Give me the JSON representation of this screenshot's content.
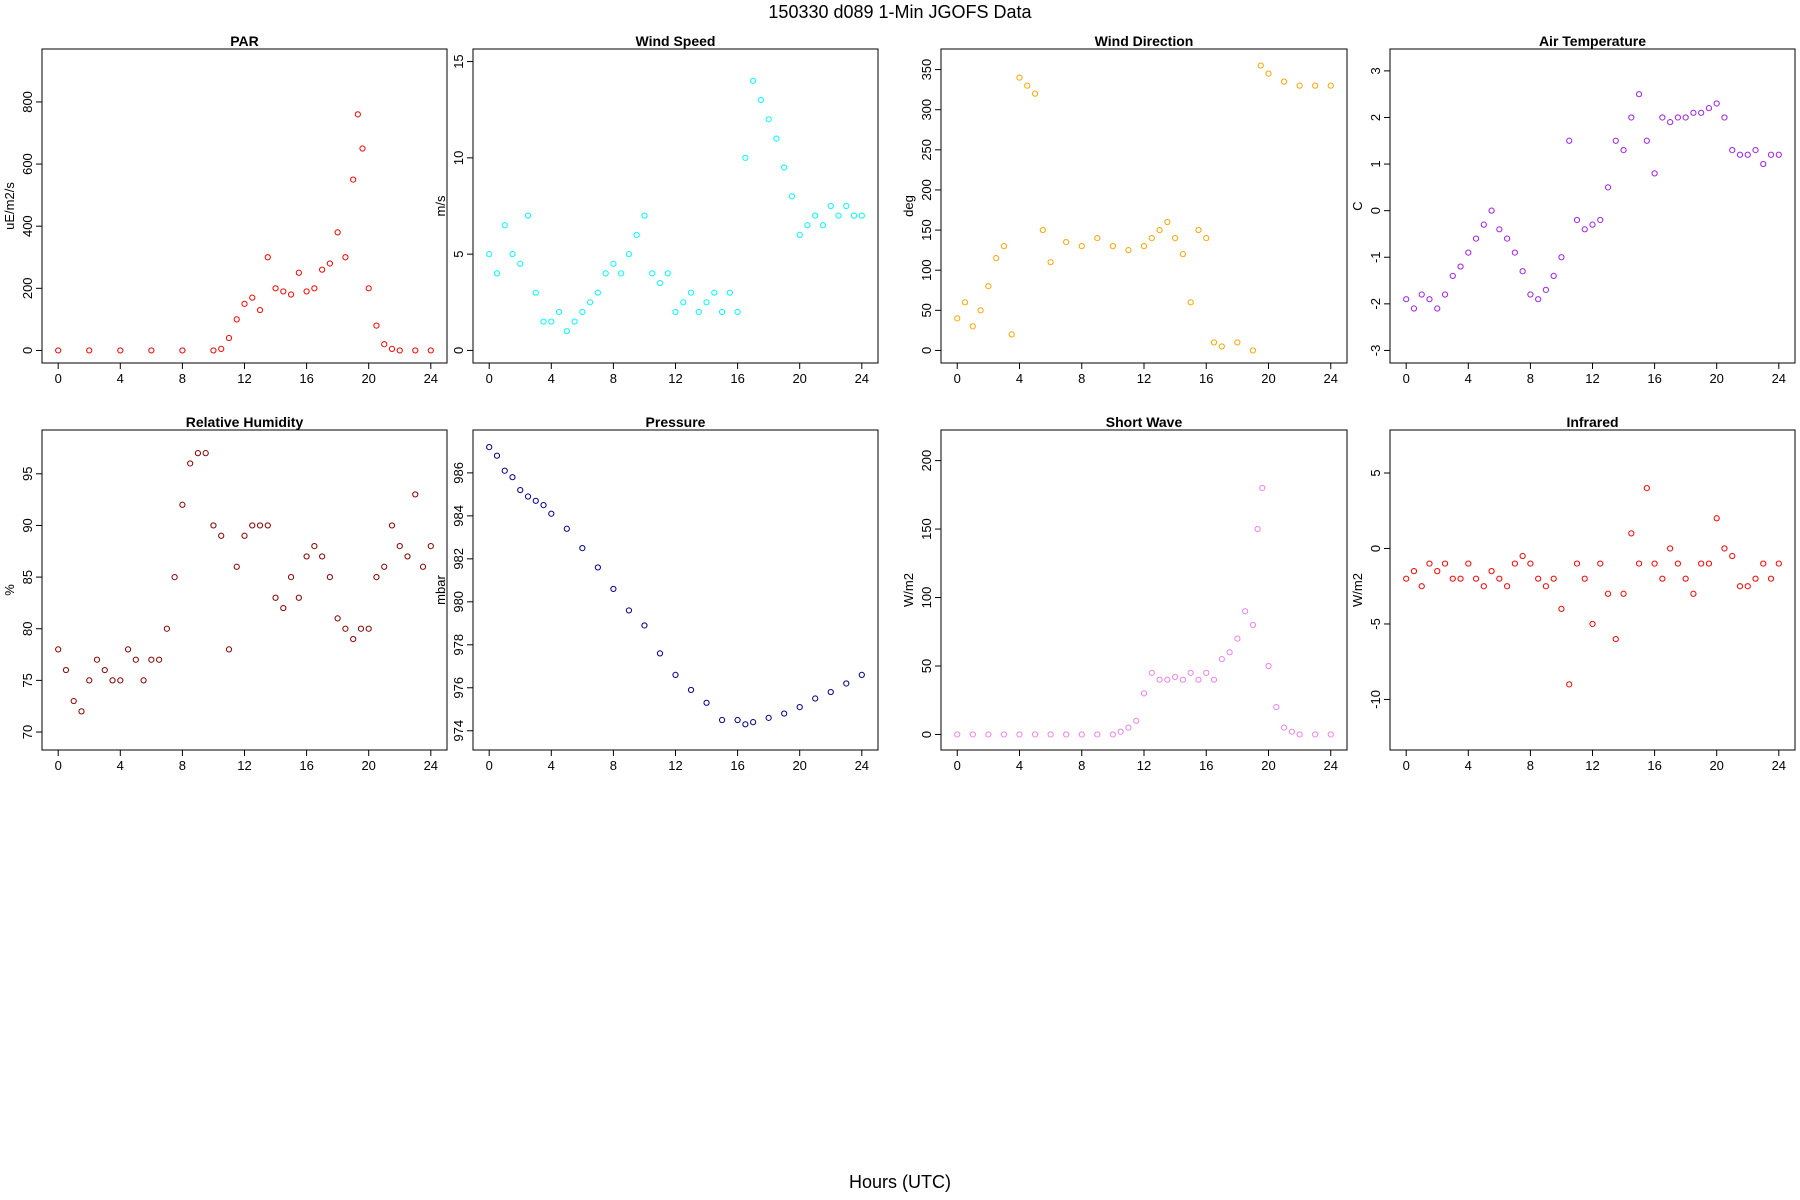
{
  "title": "150330   d089   1-Min  JGOFS Data",
  "xlabel": "Hours (UTC)",
  "chart_data": [
    {
      "type": "scatter",
      "title": "PAR",
      "ylabel": "uE/m2/s",
      "color": "#ff0000",
      "xlim": [
        0,
        24
      ],
      "ylim": [
        0,
        930
      ],
      "xticks": [
        "0",
        "4",
        "8",
        "12",
        "16",
        "20",
        "24"
      ],
      "yticks": [
        "0",
        "200",
        "400",
        "600",
        "800"
      ],
      "x": [
        0,
        2,
        4,
        6,
        8,
        10,
        10.5,
        11,
        11.5,
        12,
        12.5,
        13,
        13.5,
        14,
        14.5,
        15,
        15.5,
        16,
        16.5,
        17,
        17.5,
        18,
        18.5,
        19,
        19.3,
        19.6,
        20,
        20.5,
        21,
        21.5,
        22,
        23,
        24
      ],
      "y": [
        0,
        0,
        0,
        0,
        0,
        0,
        5,
        40,
        100,
        150,
        170,
        130,
        300,
        200,
        190,
        180,
        250,
        190,
        200,
        260,
        280,
        380,
        300,
        550,
        760,
        650,
        200,
        80,
        20,
        5,
        0,
        0,
        0
      ]
    },
    {
      "type": "scatter",
      "title": "Wind Speed",
      "ylabel": "m/s",
      "color": "#00ffff",
      "xlim": [
        0,
        24
      ],
      "ylim": [
        0,
        15
      ],
      "xticks": [
        "0",
        "4",
        "8",
        "12",
        "16",
        "20",
        "24"
      ],
      "yticks": [
        "0",
        "5",
        "10",
        "15"
      ],
      "x": [
        0,
        0.5,
        1,
        1.5,
        2,
        2.5,
        3,
        3.5,
        4,
        4.5,
        5,
        5.5,
        6,
        6.5,
        7,
        7.5,
        8,
        8.5,
        9,
        9.5,
        10,
        10.5,
        11,
        11.5,
        12,
        12.5,
        13,
        13.5,
        14,
        14.5,
        15,
        15.5,
        16,
        16.5,
        17,
        17.5,
        18,
        18.5,
        19,
        19.5,
        20,
        20.5,
        21,
        21.5,
        22,
        22.5,
        23,
        23.5,
        24
      ],
      "y": [
        5,
        4,
        6.5,
        5,
        4.5,
        7,
        3,
        1.5,
        1.5,
        2,
        1,
        1.5,
        2,
        2.5,
        3,
        4,
        4.5,
        4,
        5,
        6,
        7,
        4,
        3.5,
        4,
        2,
        2.5,
        3,
        2,
        2.5,
        3,
        2,
        3,
        2,
        10,
        14,
        13,
        12,
        11,
        9.5,
        8,
        6,
        6.5,
        7,
        6.5,
        7.5,
        7,
        7.5,
        7,
        7
      ]
    },
    {
      "type": "scatter",
      "title": "Wind Direction",
      "ylabel": "deg",
      "color": "#ffa500",
      "xlim": [
        0,
        24
      ],
      "ylim": [
        0,
        360
      ],
      "xticks": [
        "0",
        "4",
        "8",
        "12",
        "16",
        "20",
        "24"
      ],
      "yticks": [
        "0",
        "50",
        "100",
        "150",
        "200",
        "250",
        "300",
        "350"
      ],
      "x": [
        0,
        0.5,
        1,
        1.5,
        2,
        2.5,
        3,
        3.5,
        4,
        4.5,
        5,
        5.5,
        6,
        7,
        8,
        9,
        10,
        11,
        12,
        12.5,
        13,
        13.5,
        14,
        14.5,
        15,
        15.5,
        16,
        16.5,
        17,
        18,
        19,
        19.5,
        20,
        21,
        22,
        23,
        24
      ],
      "y": [
        40,
        60,
        30,
        50,
        80,
        115,
        130,
        20,
        340,
        330,
        320,
        150,
        110,
        135,
        130,
        140,
        130,
        125,
        130,
        140,
        150,
        160,
        140,
        120,
        60,
        150,
        140,
        10,
        5,
        10,
        0,
        355,
        345,
        335,
        330,
        330,
        330
      ]
    },
    {
      "type": "scatter",
      "title": "Air Temperature",
      "ylabel": "C",
      "color": "#a020f0",
      "xlim": [
        0,
        24
      ],
      "ylim": [
        -3,
        3.2
      ],
      "xticks": [
        "0",
        "4",
        "8",
        "12",
        "16",
        "20",
        "24"
      ],
      "yticks": [
        "-3",
        "-2",
        "-1",
        "0",
        "1",
        "2",
        "3"
      ],
      "x": [
        0,
        0.5,
        1,
        1.5,
        2,
        2.5,
        3,
        3.5,
        4,
        4.5,
        5,
        5.5,
        6,
        6.5,
        7,
        7.5,
        8,
        8.5,
        9,
        9.5,
        10,
        10.5,
        11,
        11.5,
        12,
        12.5,
        13,
        13.5,
        14,
        14.5,
        15,
        15.5,
        16,
        16.5,
        17,
        17.5,
        18,
        18.5,
        19,
        19.5,
        20,
        20.5,
        21,
        21.5,
        22,
        22.5,
        23,
        23.5,
        24
      ],
      "y": [
        -1.9,
        -2.1,
        -1.8,
        -1.9,
        -2.1,
        -1.8,
        -1.4,
        -1.2,
        -0.9,
        -0.6,
        -0.3,
        0,
        -0.4,
        -0.6,
        -0.9,
        -1.3,
        -1.8,
        -1.9,
        -1.7,
        -1.4,
        -1,
        1.5,
        -0.2,
        -0.4,
        -0.3,
        -0.2,
        0.5,
        1.5,
        1.3,
        2,
        2.5,
        1.5,
        0.8,
        2,
        1.9,
        2,
        2,
        2.1,
        2.1,
        2.2,
        2.3,
        2,
        1.3,
        1.2,
        1.2,
        1.3,
        1,
        1.2,
        1.2
      ]
    },
    {
      "type": "scatter",
      "title": "Relative Humidity",
      "ylabel": "%",
      "color": "#8b0000",
      "xlim": [
        0,
        24
      ],
      "ylim": [
        69.5,
        98
      ],
      "xticks": [
        "0",
        "4",
        "8",
        "12",
        "16",
        "20",
        "24"
      ],
      "yticks": [
        "70",
        "75",
        "80",
        "85",
        "90",
        "95"
      ],
      "x": [
        0,
        0.5,
        1,
        1.5,
        2,
        2.5,
        3,
        3.5,
        4,
        4.5,
        5,
        5.5,
        6,
        6.5,
        7,
        7.5,
        8,
        8.5,
        9,
        9.5,
        10,
        10.5,
        11,
        11.5,
        12,
        12.5,
        13,
        13.5,
        14,
        14.5,
        15,
        15.5,
        16,
        16.5,
        17,
        17.5,
        18,
        18.5,
        19,
        19.5,
        20,
        20.5,
        21,
        21.5,
        22,
        22.5,
        23,
        23.5,
        24
      ],
      "y": [
        78,
        76,
        73,
        72,
        75,
        77,
        76,
        75,
        75,
        78,
        77,
        75,
        77,
        77,
        80,
        85,
        92,
        96,
        97,
        97,
        90,
        89,
        78,
        86,
        89,
        90,
        90,
        90,
        83,
        82,
        85,
        83,
        87,
        88,
        87,
        85,
        81,
        80,
        79,
        80,
        80,
        85,
        86,
        90,
        88,
        87,
        93,
        86,
        88
      ]
    },
    {
      "type": "scatter",
      "title": "Pressure",
      "ylabel": "mbar",
      "color": "#00008b",
      "xlim": [
        0,
        24
      ],
      "ylim": [
        973.7,
        987.4
      ],
      "xticks": [
        "0",
        "4",
        "8",
        "12",
        "16",
        "20",
        "24"
      ],
      "yticks": [
        "974",
        "976",
        "978",
        "980",
        "982",
        "984",
        "986"
      ],
      "x": [
        0,
        0.5,
        1,
        1.5,
        2,
        2.5,
        3,
        3.5,
        4,
        5,
        6,
        7,
        8,
        9,
        10,
        11,
        12,
        13,
        14,
        15,
        16,
        16.5,
        17,
        18,
        19,
        20,
        21,
        22,
        23,
        24
      ],
      "y": [
        987.2,
        986.8,
        986.1,
        985.8,
        985.2,
        984.9,
        984.7,
        984.5,
        984.1,
        983.4,
        982.5,
        981.6,
        980.6,
        979.6,
        978.9,
        977.6,
        976.6,
        975.9,
        975.3,
        974.5,
        974.5,
        974.3,
        974.4,
        974.6,
        974.8,
        975.1,
        975.5,
        975.8,
        976.2,
        976.6
      ]
    },
    {
      "type": "scatter",
      "title": "Short Wave",
      "ylabel": "W/m2",
      "color": "#ee82ee",
      "xlim": [
        0,
        24
      ],
      "ylim": [
        -2,
        213
      ],
      "xticks": [
        "0",
        "4",
        "8",
        "12",
        "16",
        "20",
        "24"
      ],
      "yticks": [
        "0",
        "50",
        "100",
        "150",
        "200"
      ],
      "x": [
        0,
        1,
        2,
        3,
        4,
        5,
        6,
        7,
        8,
        9,
        10,
        10.5,
        11,
        11.5,
        12,
        12.5,
        13,
        13.5,
        14,
        14.5,
        15,
        15.5,
        16,
        16.5,
        17,
        17.5,
        18,
        18.5,
        19,
        19.3,
        19.6,
        20,
        20.5,
        21,
        21.5,
        22,
        23,
        24
      ],
      "y": [
        0,
        0,
        0,
        0,
        0,
        0,
        0,
        0,
        0,
        0,
        0,
        2,
        5,
        10,
        30,
        45,
        40,
        40,
        42,
        40,
        45,
        40,
        45,
        40,
        55,
        60,
        70,
        90,
        80,
        150,
        180,
        50,
        20,
        5,
        2,
        0,
        0,
        0
      ]
    },
    {
      "type": "scatter",
      "title": "Infrared",
      "ylabel": "W/m2",
      "color": "#ff0000",
      "xlim": [
        0,
        24
      ],
      "ylim": [
        -12.5,
        7
      ],
      "xticks": [
        "0",
        "4",
        "8",
        "12",
        "16",
        "20",
        "24"
      ],
      "yticks": [
        "-10",
        "-5",
        "0",
        "5"
      ],
      "x": [
        0,
        0.5,
        1,
        1.5,
        2,
        2.5,
        3,
        3.5,
        4,
        4.5,
        5,
        5.5,
        6,
        6.5,
        7,
        7.5,
        8,
        8.5,
        9,
        9.5,
        10,
        10.5,
        11,
        11.5,
        12,
        12.5,
        13,
        13.5,
        14,
        14.5,
        15,
        15.5,
        16,
        16.5,
        17,
        17.5,
        18,
        18.5,
        19,
        19.5,
        20,
        20.5,
        21,
        21.5,
        22,
        22.5,
        23,
        23.5,
        24
      ],
      "y": [
        -2,
        -1.5,
        -2.5,
        -1,
        -1.5,
        -1,
        -2,
        -2,
        -1,
        -2,
        -2.5,
        -1.5,
        -2,
        -2.5,
        -1,
        -0.5,
        -1,
        -2,
        -2.5,
        -2,
        -4,
        -9,
        -1,
        -2,
        -5,
        -1,
        -3,
        -6,
        -3,
        1,
        -1,
        4,
        -1,
        -2,
        0,
        -1,
        -2,
        -3,
        -1,
        -1,
        2,
        0,
        -0.5,
        -2.5,
        -2.5,
        -2,
        -1,
        -2,
        -1
      ]
    }
  ]
}
